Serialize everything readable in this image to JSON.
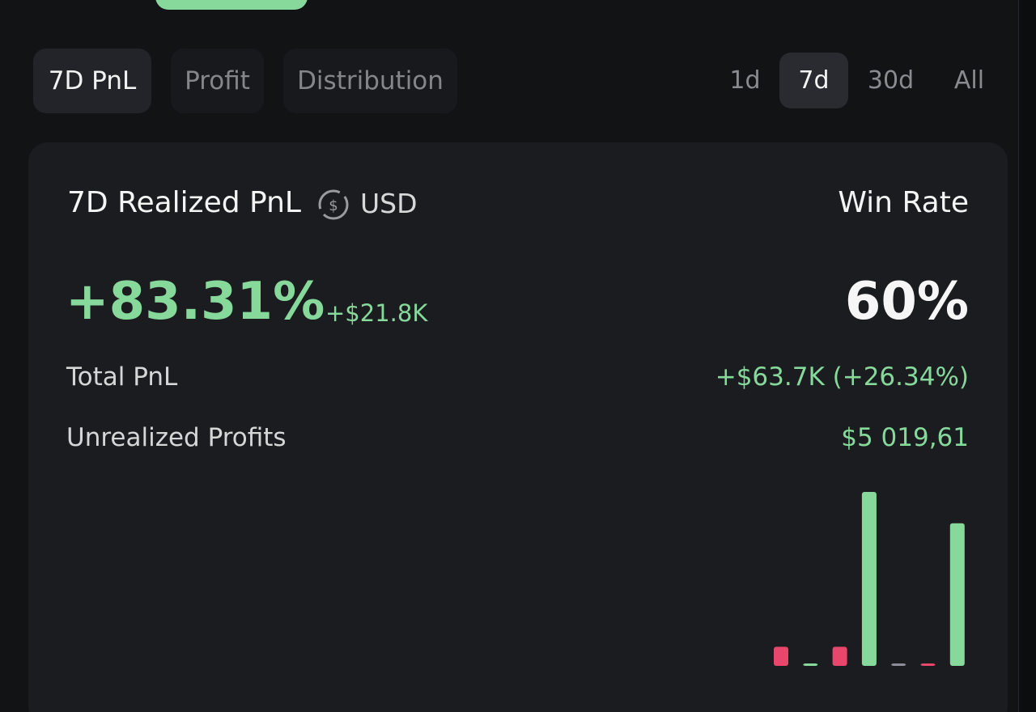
{
  "header": {
    "tabs": [
      "7D PnL",
      "Profit",
      "Distribution"
    ],
    "active_tab": 0,
    "periods": [
      "1d",
      "7d",
      "30d",
      "All"
    ],
    "active_period": 1
  },
  "card": {
    "title": "7D Realized PnL",
    "currency": "USD",
    "win_rate_label": "Win Rate",
    "realized_pct": "+83.31%",
    "realized_usd": "+$21.8K",
    "win_rate": "60%",
    "rows": [
      [
        "Total PnL",
        "+$63.7K (+26.34%)"
      ],
      [
        "Unrealized Profits",
        "$5 019,61"
      ]
    ]
  },
  "bars": {
    "values": [
      -1.1,
      0.1,
      -1.1,
      10,
      0,
      -0.1,
      8.2
    ],
    "positive_color": "#86d99a",
    "negative_color": "#e8466a",
    "zero_color": "#8c8f9a"
  }
}
